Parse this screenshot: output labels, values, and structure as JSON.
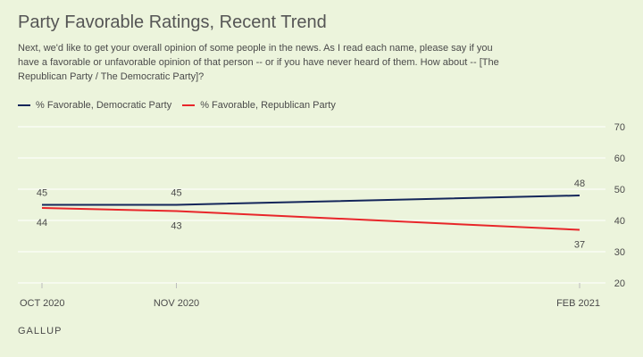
{
  "colors": {
    "background": "#ecf4dc",
    "gridline": "#ffffff",
    "text": "#4a4a4a",
    "democratic": "#14265a",
    "republican": "#e8262a"
  },
  "chart_data": {
    "type": "line",
    "title": "Party Favorable Ratings, Recent Trend",
    "subtitle": "Next, we'd like to get your overall opinion of some people in the news. As I read each name, please say if you have a favorable or unfavorable opinion of that person -- or if you have never heard of them. How about -- [The Republican Party / The Democratic Party]?",
    "x": [
      "2020-10",
      "2020-11",
      "2021-02"
    ],
    "x_tick_labels": [
      "OCT 2020",
      "NOV 2020",
      "FEB 2021"
    ],
    "ylim": [
      20,
      70
    ],
    "y_ticks": [
      20,
      30,
      40,
      50,
      60,
      70
    ],
    "y_axis_side": "right",
    "grid": true,
    "legend_position": "top-left",
    "series": [
      {
        "name": "% Favorable, Democratic Party",
        "color": "#14265a",
        "values": [
          45,
          45,
          48
        ],
        "label_side": [
          "above",
          "above",
          "above"
        ]
      },
      {
        "name": "% Favorable, Republican Party",
        "color": "#e8262a",
        "values": [
          44,
          43,
          37
        ],
        "label_side": [
          "below",
          "below",
          "below"
        ]
      }
    ],
    "source": "GALLUP"
  }
}
